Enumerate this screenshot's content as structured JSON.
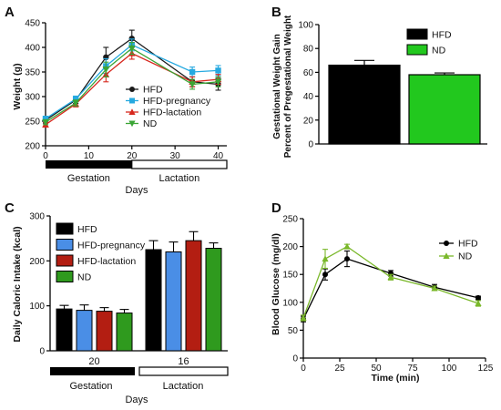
{
  "chart_data": [
    {
      "panel": "A",
      "type": "line",
      "xlabel": "Days",
      "ylabel": "Weight (g)",
      "xlim": [
        0,
        42
      ],
      "ylim": [
        200,
        450
      ],
      "xticks": [
        0,
        10,
        20,
        30,
        40
      ],
      "yticks": [
        200,
        250,
        300,
        350,
        400,
        450
      ],
      "phases": [
        "Gestation",
        "Lactation"
      ],
      "series": [
        {
          "name": "HFD",
          "color": "#1a1a1a",
          "marker": "circle",
          "x": [
            0,
            7,
            14,
            20,
            34,
            40
          ],
          "y": [
            252,
            293,
            380,
            418,
            330,
            325
          ],
          "err": [
            6,
            7,
            20,
            17,
            10,
            12
          ]
        },
        {
          "name": "HFD-pregnancy",
          "color": "#26a9e0",
          "marker": "square",
          "x": [
            0,
            7,
            14,
            20,
            34,
            40
          ],
          "y": [
            255,
            295,
            362,
            405,
            350,
            353
          ],
          "err": [
            5,
            6,
            15,
            12,
            10,
            10
          ]
        },
        {
          "name": "HFD-lactation",
          "color": "#d7281e",
          "marker": "triangle-up",
          "x": [
            0,
            7,
            14,
            20,
            34,
            40
          ],
          "y": [
            243,
            285,
            345,
            388,
            330,
            335
          ],
          "err": [
            5,
            6,
            15,
            12,
            10,
            10
          ]
        },
        {
          "name": "ND",
          "color": "#3aa535",
          "marker": "triangle-down",
          "x": [
            0,
            7,
            14,
            20,
            34,
            40
          ],
          "y": [
            248,
            287,
            355,
            398,
            325,
            330
          ],
          "err": [
            5,
            6,
            15,
            12,
            10,
            10
          ]
        }
      ]
    },
    {
      "panel": "B",
      "type": "bar",
      "ylabel_line1": "Gestational Weight Gain",
      "ylabel_line2": "Percent of Pregestational Weight",
      "ylim": [
        0,
        100
      ],
      "yticks": [
        0,
        20,
        40,
        60,
        80,
        100
      ],
      "series": [
        {
          "name": "HFD",
          "color": "#000000",
          "value": 66,
          "err": 4
        },
        {
          "name": "ND",
          "color": "#22c81e",
          "value": 58,
          "err": 1.5
        }
      ]
    },
    {
      "panel": "C",
      "type": "bar",
      "xlabel": "Days",
      "ylabel": "Daily Caloric Intake (kcal)",
      "ylim": [
        0,
        300
      ],
      "yticks": [
        0,
        100,
        200,
        300
      ],
      "categories": [
        "20",
        "16"
      ],
      "phases": [
        "Gestation",
        "Lactation"
      ],
      "series": [
        {
          "name": "HFD",
          "color": "#000000",
          "values": [
            93,
            225
          ],
          "err": [
            8,
            20
          ]
        },
        {
          "name": "HFD-pregnancy",
          "color": "#4a8ee6",
          "values": [
            90,
            220
          ],
          "err": [
            12,
            22
          ]
        },
        {
          "name": "HFD-lactation",
          "color": "#b31e12",
          "values": [
            88,
            245
          ],
          "err": [
            8,
            20
          ]
        },
        {
          "name": "ND",
          "color": "#2f9a1e",
          "values": [
            84,
            228
          ],
          "err": [
            8,
            12
          ]
        }
      ]
    },
    {
      "panel": "D",
      "type": "line",
      "xlabel": "Time (min)",
      "ylabel": "Blood  Glucose (mg/dl)",
      "xlim": [
        0,
        125
      ],
      "ylim": [
        0,
        250
      ],
      "xticks": [
        0,
        25,
        50,
        75,
        100,
        125
      ],
      "yticks": [
        0,
        50,
        100,
        150,
        200,
        250
      ],
      "series": [
        {
          "name": "HFD",
          "color": "#000000",
          "marker": "circle",
          "x": [
            0,
            15,
            30,
            60,
            90,
            120
          ],
          "y": [
            70,
            150,
            178,
            152,
            127,
            108
          ],
          "err": [
            5,
            10,
            14,
            5,
            5,
            3
          ]
        },
        {
          "name": "ND",
          "color": "#7ab82a",
          "marker": "triangle-up",
          "x": [
            0,
            15,
            30,
            60,
            90,
            120
          ],
          "y": [
            72,
            178,
            200,
            145,
            125,
            98
          ],
          "err": [
            5,
            17,
            4,
            5,
            4,
            5
          ]
        }
      ]
    }
  ]
}
